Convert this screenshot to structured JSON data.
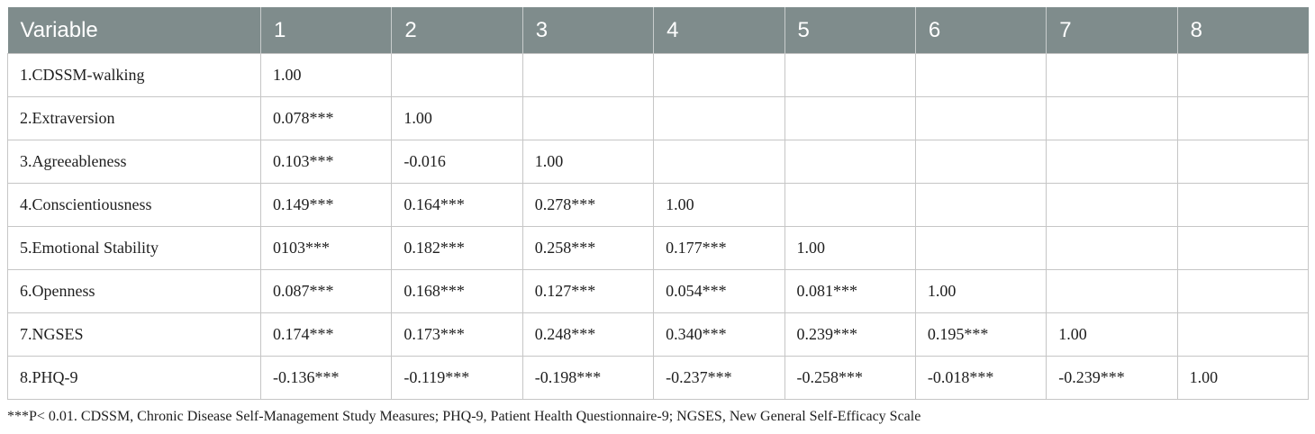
{
  "table": {
    "headers": [
      "Variable",
      "1",
      "2",
      "3",
      "4",
      "5",
      "6",
      "7",
      "8"
    ],
    "rows": [
      [
        "1.CDSSM-walking",
        "1.00",
        "",
        "",
        "",
        "",
        "",
        "",
        ""
      ],
      [
        "2.Extraversion",
        "0.078***",
        "1.00",
        "",
        "",
        "",
        "",
        "",
        ""
      ],
      [
        "3.Agreeableness",
        "0.103***",
        "-0.016",
        "1.00",
        "",
        "",
        "",
        "",
        ""
      ],
      [
        "4.Conscientiousness",
        "0.149***",
        "0.164***",
        "0.278***",
        "1.00",
        "",
        "",
        "",
        ""
      ],
      [
        "5.Emotional Stability",
        "0103***",
        "0.182***",
        "0.258***",
        "0.177***",
        "1.00",
        "",
        "",
        ""
      ],
      [
        "6.Openness",
        "0.087***",
        "0.168***",
        "0.127***",
        "0.054***",
        "0.081***",
        "1.00",
        "",
        ""
      ],
      [
        "7.NGSES",
        "0.174***",
        "0.173***",
        "0.248***",
        "0.340***",
        "0.239***",
        "0.195***",
        "1.00",
        ""
      ],
      [
        "8.PHQ-9",
        "-0.136***",
        "-0.119***",
        "-0.198***",
        "-0.237***",
        "-0.258***",
        "-0.018***",
        "-0.239***",
        "1.00"
      ]
    ]
  },
  "footnote": "***P< 0.01. CDSSM, Chronic Disease Self-Management Study Measures; PHQ-9, Patient Health Questionnaire-9; NGSES, New General Self-Efficacy Scale",
  "colors": {
    "header_bg": "#7f8c8c",
    "header_text": "#ffffff",
    "grid_line": "#c6c6c6"
  }
}
